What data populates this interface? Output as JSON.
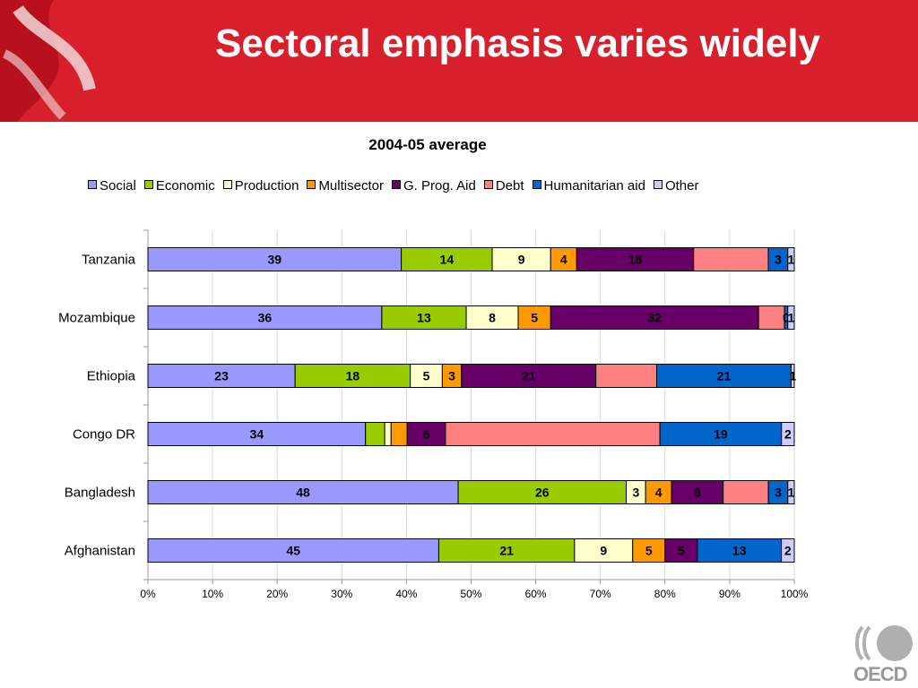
{
  "title": "Sectoral emphasis varies widely",
  "logo_text": "OECD",
  "chart_data": {
    "type": "bar",
    "orientation": "horizontal",
    "stacked": "percent",
    "title": "2004-05 average",
    "categories": [
      "Tanzania",
      "Mozambique",
      "Ethiopia",
      "Congo DR",
      "Bangladesh",
      "Afghanistan"
    ],
    "series": [
      {
        "name": "Social",
        "color": "#9999ff",
        "values": [
          39,
          36,
          23,
          34,
          48,
          45
        ],
        "labels": [
          "39",
          "36",
          "23",
          "34",
          "48",
          "45"
        ]
      },
      {
        "name": "Economic",
        "color": "#99cc00",
        "values": [
          14,
          13,
          18,
          3,
          26,
          21
        ],
        "labels": [
          "14",
          "13",
          "18",
          "",
          "26",
          "21"
        ]
      },
      {
        "name": "Production",
        "color": "#ffffcc",
        "values": [
          9,
          8,
          5,
          1,
          3,
          9
        ],
        "labels": [
          "9",
          "8",
          "5",
          "",
          "3",
          "9"
        ]
      },
      {
        "name": "Multisector",
        "color": "#ff9900",
        "values": [
          4,
          5,
          3,
          2.5,
          4,
          5
        ],
        "labels": [
          "4",
          "5",
          "3",
          "",
          "4",
          "5"
        ]
      },
      {
        "name": "G. Prog. Aid",
        "color": "#660066",
        "values": [
          18,
          32,
          21,
          6,
          8,
          5
        ],
        "labels": [
          "18",
          "32",
          "21",
          "6",
          "8",
          "5"
        ]
      },
      {
        "name": "Debt",
        "color": "#ff8080",
        "values": [
          11.5,
          4,
          9.5,
          33.5,
          7,
          0
        ],
        "labels": [
          "",
          "",
          "",
          "",
          "",
          ""
        ]
      },
      {
        "name": "Humanitarian aid",
        "color": "#0066cc",
        "values": [
          3,
          0.5,
          21,
          19,
          3,
          13
        ],
        "labels": [
          "3",
          "0",
          "21",
          "19",
          "3",
          "13"
        ]
      },
      {
        "name": "Other",
        "color": "#ccccff",
        "values": [
          1,
          1,
          0.5,
          2,
          1,
          2
        ],
        "labels": [
          "1",
          "1",
          "1",
          "2",
          "1",
          "2"
        ]
      }
    ],
    "x_ticks": [
      "0%",
      "10%",
      "20%",
      "30%",
      "40%",
      "50%",
      "60%",
      "70%",
      "80%",
      "90%",
      "100%"
    ],
    "xlim": [
      0,
      100
    ],
    "grid": "vertical",
    "legend_position": "top"
  }
}
